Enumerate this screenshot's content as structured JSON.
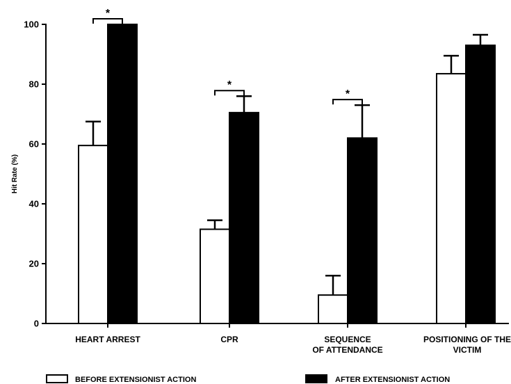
{
  "chart_data": {
    "type": "bar",
    "title": "",
    "xlabel": "",
    "ylabel": "Hit Rate (%)",
    "ylim": [
      0,
      100
    ],
    "yticks": [
      0,
      20,
      40,
      60,
      80,
      100
    ],
    "categories": [
      [
        "HEART ARREST"
      ],
      [
        "CPR"
      ],
      [
        "SEQUENCE",
        "OF ATTENDANCE"
      ],
      [
        "POSITIONING OF THE",
        "VICTIM"
      ]
    ],
    "series": [
      {
        "name": "BEFORE EXTENSIONIST ACTION",
        "fill": "#ffffff",
        "values": [
          59.5,
          31.5,
          9.5,
          83.5
        ],
        "errors": [
          8,
          3,
          6.5,
          6
        ]
      },
      {
        "name": "AFTER EXTENSIONIST ACTION",
        "fill": "#000000",
        "values": [
          100,
          70.5,
          62,
          93
        ],
        "errors": [
          0,
          5.5,
          11,
          3.5
        ]
      }
    ],
    "significance": [
      {
        "category_index": 0,
        "label": "*"
      },
      {
        "category_index": 1,
        "label": "*"
      },
      {
        "category_index": 2,
        "label": "*"
      }
    ],
    "legend_position": "bottom",
    "grid": false
  }
}
